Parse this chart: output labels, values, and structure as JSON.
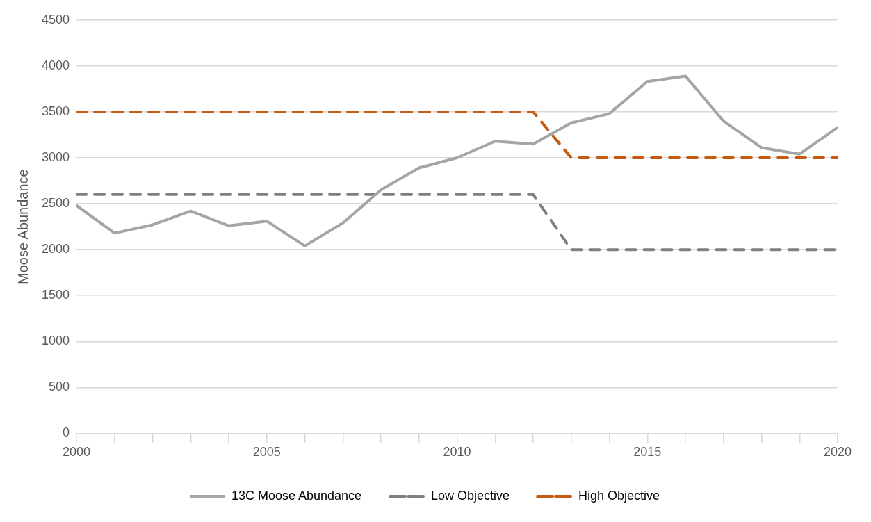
{
  "chart_data": {
    "type": "line",
    "ylabel": "Moose Abundance",
    "x": [
      2000,
      2001,
      2002,
      2003,
      2004,
      2005,
      2006,
      2007,
      2008,
      2009,
      2010,
      2011,
      2012,
      2013,
      2014,
      2015,
      2016,
      2017,
      2018,
      2019,
      2020
    ],
    "series": [
      {
        "name": "13C Moose Abundance",
        "color": "#a5a5a5",
        "line_style": "solid",
        "values": [
          2480,
          2180,
          2270,
          2420,
          2260,
          2310,
          2040,
          2290,
          2650,
          2890,
          3000,
          3180,
          3150,
          3380,
          3480,
          3830,
          3890,
          3400,
          3110,
          3040,
          3330
        ]
      },
      {
        "name": "Low Objective",
        "color": "#7f7f7f",
        "line_style": "dashed",
        "values": [
          2600,
          2600,
          2600,
          2600,
          2600,
          2600,
          2600,
          2600,
          2600,
          2600,
          2600,
          2600,
          2600,
          2000,
          2000,
          2000,
          2000,
          2000,
          2000,
          2000,
          2000
        ]
      },
      {
        "name": "High Objective",
        "color": "#c55a11",
        "line_style": "dashed",
        "values": [
          3500,
          3500,
          3500,
          3500,
          3500,
          3500,
          3500,
          3500,
          3500,
          3500,
          3500,
          3500,
          3500,
          3000,
          3000,
          3000,
          3000,
          3000,
          3000,
          3000,
          3000
        ]
      }
    ],
    "xlim": [
      2000,
      2020
    ],
    "xticks": [
      2000,
      {
        "value": 2001,
        "label": null
      },
      {
        "value": 2002,
        "label": null
      },
      {
        "value": 2003,
        "label": null
      },
      {
        "value": 2004,
        "label": null
      },
      2005,
      {
        "value": 2006,
        "label": null
      },
      {
        "value": 2007,
        "label": null
      },
      {
        "value": 2008,
        "label": null
      },
      {
        "value": 2009,
        "label": null
      },
      2010,
      {
        "value": 2011,
        "label": null
      },
      {
        "value": 2012,
        "label": null
      },
      {
        "value": 2013,
        "label": null
      },
      {
        "value": 2014,
        "label": null
      },
      2015,
      {
        "value": 2016,
        "label": null
      },
      {
        "value": 2017,
        "label": null
      },
      {
        "value": 2018,
        "label": null
      },
      {
        "value": 2019,
        "label": null
      },
      2020
    ],
    "ylim": [
      0,
      4500
    ],
    "yticks": [
      0,
      500,
      1000,
      1500,
      2000,
      2500,
      3000,
      3500,
      4000,
      4500
    ],
    "grid": "y",
    "legend": "bottom",
    "marker": "none"
  }
}
